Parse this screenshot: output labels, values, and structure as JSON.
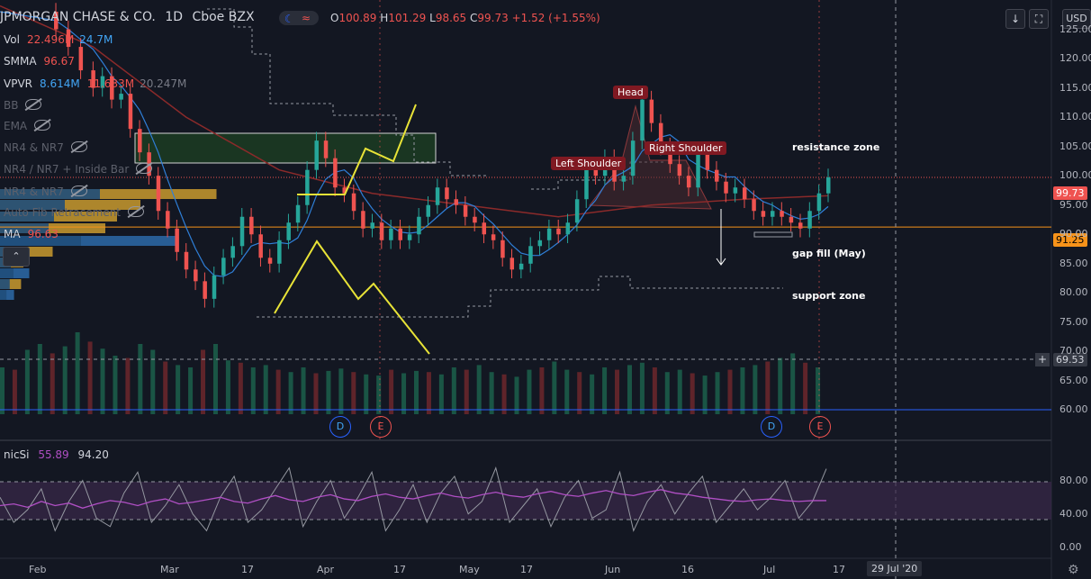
{
  "header": {
    "symbol": "JPMORGAN CHASE & CO.",
    "interval": "1D",
    "exchange": "Cboe BZX",
    "ohlc": {
      "o_label": "O",
      "o": "100.89",
      "h_label": "H",
      "h": "101.29",
      "l_label": "L",
      "l": "98.65",
      "c_label": "C",
      "c": "99.73",
      "change": "+1.52 (+1.55%)"
    }
  },
  "indicators": [
    {
      "name": "Vol",
      "v1": "22.496M",
      "v2": "24.7M",
      "v3": ""
    },
    {
      "name": "SMMA",
      "v1": "96.67",
      "v2": "",
      "v3": ""
    },
    {
      "name": "VPVR",
      "v1": "8.614M",
      "v2": "11.633M",
      "v3": "20.247M"
    },
    {
      "name": "BB",
      "v1": "",
      "v2": "",
      "v3": ""
    },
    {
      "name": "EMA",
      "v1": "",
      "v2": "",
      "v3": ""
    },
    {
      "name": "NR4 & NR7",
      "v1": "",
      "v2": "",
      "v3": ""
    },
    {
      "name": "NR4 / NR7 + Inside Bar",
      "v1": "",
      "v2": "",
      "v3": ""
    },
    {
      "name": "NR4 & NR7",
      "v1": "",
      "v2": "",
      "v3": ""
    },
    {
      "name": "Auto Fib Retracement",
      "v1": "",
      "v2": "",
      "v3": ""
    },
    {
      "name": "MA",
      "v1": "96.63",
      "v2": "",
      "v3": ""
    }
  ],
  "buttons": {
    "collapse": "⌃",
    "download": "↓",
    "fullscreen": "⛶",
    "currency": "USD"
  },
  "annotations": {
    "head": "Head",
    "left_shoulder": "Left Shoulder",
    "right_shoulder": "Right Shoulder",
    "resistance": "resistance zone",
    "gap_fill": "gap fill (May)",
    "support": "support zone"
  },
  "price_labels": {
    "last": "99.73",
    "level": "91.25",
    "crosshair": "69.53"
  },
  "rsi": {
    "name": "nicSi",
    "v1": "55.89",
    "v2": "94.20"
  },
  "tooltip_date": "29 Jul '20",
  "events": [
    {
      "letter": "D"
    },
    {
      "letter": "E"
    },
    {
      "letter": "D"
    },
    {
      "letter": "E"
    }
  ],
  "colors": {
    "up": "#26a69a",
    "down": "#ef5350",
    "bg": "#131722",
    "accent": "#2962ff",
    "pattern": "#e8e337",
    "rsi": "#b04fc4"
  },
  "chart_data": {
    "type": "candlestick",
    "ylim": [
      55,
      130
    ],
    "y_ticks": [
      60,
      65,
      70,
      75,
      80,
      85,
      90,
      95,
      100,
      105,
      110,
      115,
      120,
      125
    ],
    "rsi_ticks": [
      0,
      40,
      80
    ],
    "x_ticks": [
      "Feb",
      "Mar",
      "17",
      "Apr",
      "17",
      "May",
      "17",
      "Jun",
      "16",
      "Jul",
      "17"
    ],
    "price_path": [
      [
        0,
        128
      ],
      [
        18,
        125
      ],
      [
        22,
        122
      ],
      [
        26,
        118
      ],
      [
        30,
        115
      ],
      [
        33,
        117
      ],
      [
        36,
        113
      ],
      [
        39,
        114
      ],
      [
        42,
        108
      ],
      [
        45,
        104
      ],
      [
        48,
        100
      ],
      [
        51,
        94
      ],
      [
        54,
        91
      ],
      [
        57,
        87
      ],
      [
        60,
        84
      ],
      [
        63,
        82
      ],
      [
        66,
        79
      ],
      [
        69,
        83
      ],
      [
        72,
        86
      ],
      [
        75,
        88
      ],
      [
        78,
        93
      ],
      [
        81,
        90
      ],
      [
        84,
        86
      ],
      [
        87,
        85
      ],
      [
        90,
        89
      ],
      [
        93,
        92
      ],
      [
        96,
        95
      ],
      [
        99,
        101
      ],
      [
        102,
        106
      ],
      [
        105,
        103
      ],
      [
        108,
        98
      ],
      [
        111,
        97
      ],
      [
        114,
        94
      ],
      [
        117,
        91
      ],
      [
        120,
        92
      ],
      [
        123,
        89
      ],
      [
        126,
        91
      ],
      [
        129,
        89
      ],
      [
        132,
        90
      ],
      [
        135,
        93
      ],
      [
        138,
        95
      ],
      [
        141,
        98
      ],
      [
        144,
        96
      ],
      [
        147,
        95
      ],
      [
        150,
        93
      ],
      [
        153,
        92
      ],
      [
        156,
        90
      ],
      [
        159,
        89
      ],
      [
        162,
        86
      ],
      [
        165,
        84
      ],
      [
        168,
        85
      ],
      [
        171,
        88
      ],
      [
        174,
        89
      ],
      [
        177,
        91
      ],
      [
        180,
        90
      ],
      [
        183,
        92
      ],
      [
        186,
        96
      ],
      [
        189,
        101
      ],
      [
        192,
        100
      ],
      [
        195,
        103
      ],
      [
        198,
        99
      ],
      [
        201,
        100
      ],
      [
        204,
        106
      ],
      [
        207,
        113
      ],
      [
        210,
        109
      ],
      [
        213,
        105
      ],
      [
        216,
        102
      ],
      [
        219,
        100
      ],
      [
        222,
        98
      ],
      [
        225,
        104
      ],
      [
        228,
        101
      ],
      [
        231,
        99
      ],
      [
        234,
        97
      ],
      [
        237,
        98
      ],
      [
        240,
        96
      ],
      [
        243,
        94
      ],
      [
        246,
        93
      ],
      [
        249,
        94
      ],
      [
        252,
        93
      ],
      [
        255,
        92
      ],
      [
        258,
        91
      ],
      [
        261,
        94
      ],
      [
        264,
        97
      ],
      [
        267,
        99.73
      ]
    ],
    "volume_path": [
      40,
      38,
      55,
      60,
      52,
      58,
      70,
      62,
      56,
      50,
      48,
      60,
      55,
      45,
      42,
      40,
      55,
      60,
      46,
      44,
      40,
      42,
      38,
      36,
      40,
      35,
      37,
      39,
      36,
      34,
      33,
      38,
      35,
      37,
      36,
      34,
      40,
      38,
      42,
      36,
      34,
      32,
      38,
      40,
      45,
      38,
      36,
      34,
      40,
      38,
      42,
      44,
      40,
      36,
      38,
      35,
      33,
      36,
      38,
      40,
      42,
      45,
      48,
      52,
      44,
      40
    ],
    "rsi_path": [
      60,
      30,
      45,
      70,
      20,
      55,
      80,
      35,
      25,
      65,
      90,
      30,
      50,
      75,
      40,
      20,
      60,
      85,
      30,
      45,
      70,
      95,
      25,
      55,
      80,
      35,
      60,
      90,
      20,
      45,
      75,
      30,
      65,
      85,
      40,
      55,
      95,
      30,
      50,
      70,
      25,
      60,
      80,
      35,
      45,
      90,
      20,
      55,
      75,
      40,
      65,
      85,
      30,
      50,
      70,
      45,
      60,
      80,
      35,
      55,
      94
    ],
    "rsi_ma_path": [
      50,
      52,
      48,
      55,
      50,
      53,
      47,
      52,
      56,
      54,
      50,
      55,
      58,
      52,
      54,
      57,
      60,
      55,
      53,
      58,
      62,
      57,
      55,
      60,
      63,
      58,
      56,
      61,
      64,
      60,
      58,
      62,
      65,
      61,
      59,
      63,
      66,
      62,
      60,
      64,
      67,
      63,
      61,
      65,
      68,
      64,
      62,
      66,
      69,
      65,
      63,
      60,
      58,
      56,
      55,
      57,
      58,
      56,
      55,
      56,
      56
    ],
    "sma_path": [
      [
        0,
        129
      ],
      [
        30,
        122
      ],
      [
        60,
        110
      ],
      [
        90,
        101
      ],
      [
        120,
        97
      ],
      [
        150,
        95
      ],
      [
        180,
        93
      ],
      [
        210,
        95
      ],
      [
        240,
        96
      ],
      [
        267,
        96.6
      ]
    ]
  }
}
